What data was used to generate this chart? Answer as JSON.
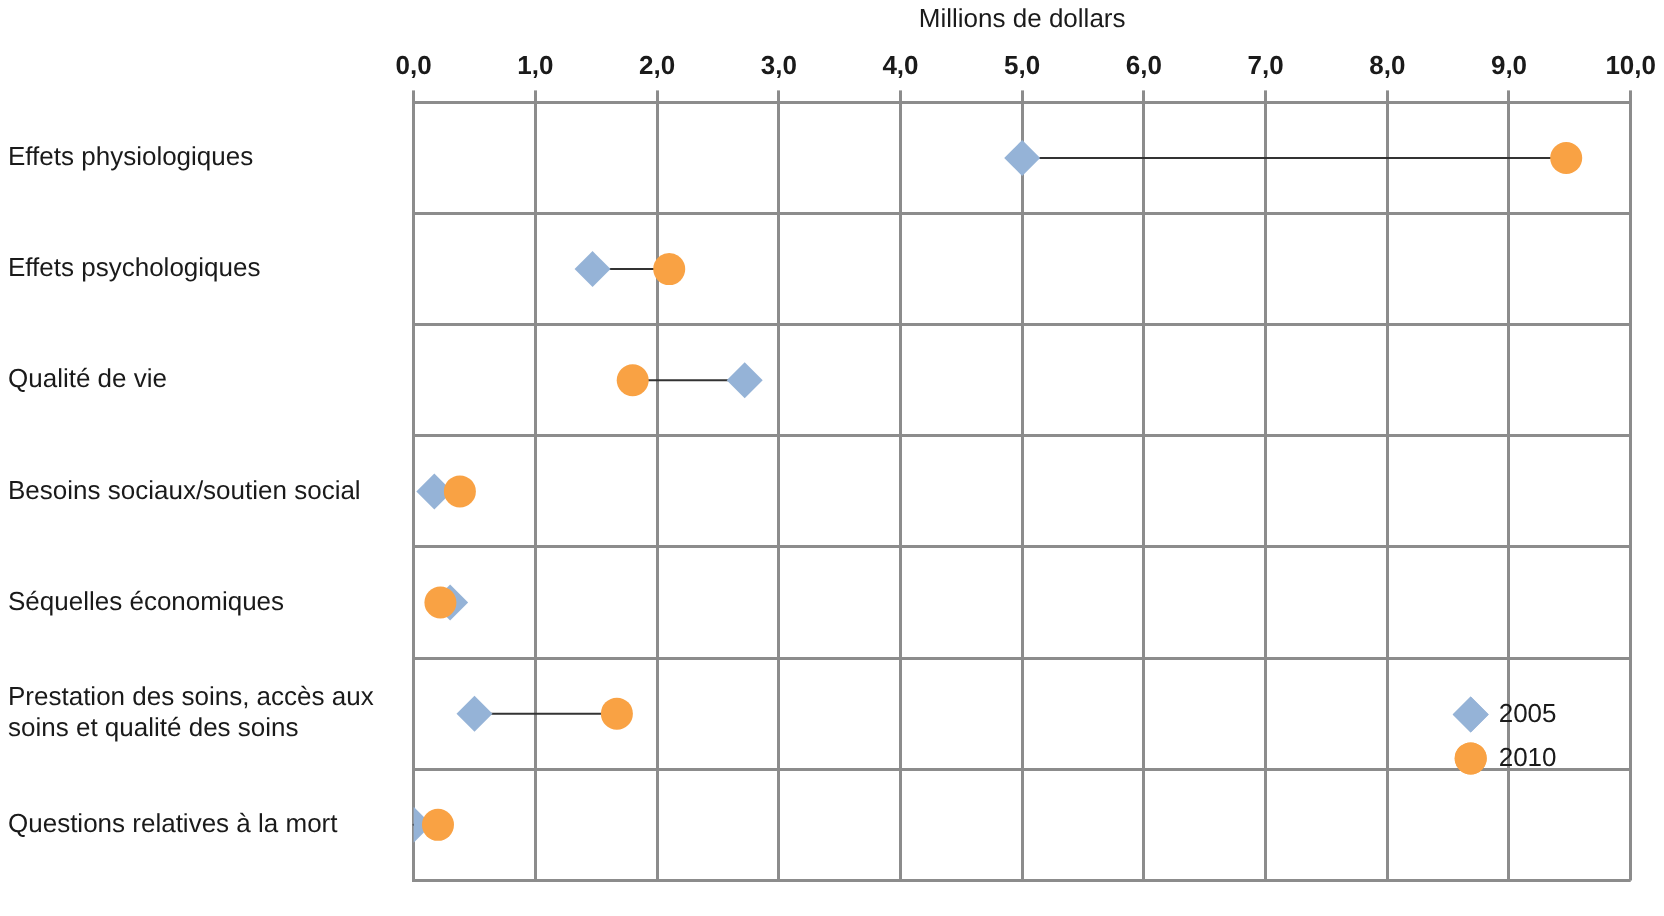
{
  "chart_data": {
    "type": "scatter",
    "orientation": "horizontal",
    "xlabel": "Millions de dollars",
    "categories": [
      "Effets physiologiques",
      "Effets psychologiques",
      "Qualité de vie",
      "Besoins sociaux/soutien social",
      "Séquelles économiques",
      "Prestation des soins, accès aux soins et qualité des soins",
      "Questions relatives à la mort"
    ],
    "xlim": [
      0,
      10
    ],
    "xticks": [
      {
        "value": 0,
        "label": "0,0"
      },
      {
        "value": 1,
        "label": "1,0"
      },
      {
        "value": 2,
        "label": "2,0"
      },
      {
        "value": 3,
        "label": "3,0"
      },
      {
        "value": 4,
        "label": "4,0"
      },
      {
        "value": 5,
        "label": "5,0"
      },
      {
        "value": 6,
        "label": "6,0"
      },
      {
        "value": 7,
        "label": "7,0"
      },
      {
        "value": 8,
        "label": "8,0"
      },
      {
        "value": 9,
        "label": "9,0"
      },
      {
        "value": 10,
        "label": "10,0"
      }
    ],
    "grid": true,
    "legend": "bottom right",
    "series": [
      {
        "name": "2005",
        "color": "#95b3d7",
        "marker": "diamond",
        "values": [
          5.0,
          1.47,
          2.72,
          0.17,
          0.3,
          0.5,
          0.0
        ]
      },
      {
        "name": "2010",
        "color": "#f9a244",
        "marker": "circle",
        "values": [
          9.47,
          2.1,
          1.8,
          0.38,
          0.22,
          1.67,
          0.2
        ]
      }
    ]
  }
}
